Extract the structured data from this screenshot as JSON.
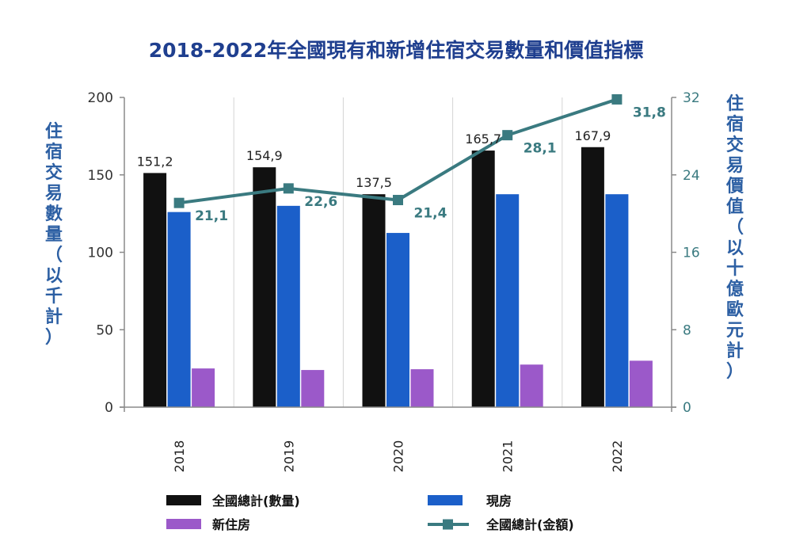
{
  "chart_data": {
    "type": "bar",
    "title": "2018-2022年全國現有和新增住宿交易數量和價值指標",
    "categories": [
      "2018",
      "2019",
      "2020",
      "2021",
      "2022"
    ],
    "ylabel": "住宿交易數量（以千計）",
    "y2label": "住宿交易價值（以十億歐元計）",
    "ylim": [
      0,
      200
    ],
    "y2lim": [
      0,
      32
    ],
    "yticks": [
      0,
      50,
      100,
      150,
      200
    ],
    "y2ticks": [
      0,
      8,
      16,
      24,
      32
    ],
    "grid": "vertical",
    "legend_position": "bottom",
    "series": [
      {
        "name": "全國總計(數量)",
        "type": "bar",
        "axis": "left",
        "color": "#111111",
        "values": [
          151.2,
          154.9,
          137.5,
          165.7,
          167.9
        ],
        "labels": [
          "151,2",
          "154,9",
          "137,5",
          "165,7",
          "167,9"
        ]
      },
      {
        "name": "現房",
        "type": "bar",
        "axis": "left",
        "color": "#1b5fc9",
        "values": [
          126,
          130,
          112.5,
          137.5,
          137.5
        ],
        "labels": []
      },
      {
        "name": "新住房",
        "type": "bar",
        "axis": "left",
        "color": "#9b59c9",
        "values": [
          25,
          24,
          24.5,
          27.5,
          30
        ],
        "labels": []
      },
      {
        "name": "全國總計(金額)",
        "type": "line",
        "axis": "right",
        "color": "#3a7a80",
        "values": [
          21.1,
          22.6,
          21.4,
          28.1,
          31.8
        ],
        "labels": [
          "21,1",
          "22,6",
          "21,4",
          "28,1",
          "31,8"
        ]
      }
    ]
  }
}
